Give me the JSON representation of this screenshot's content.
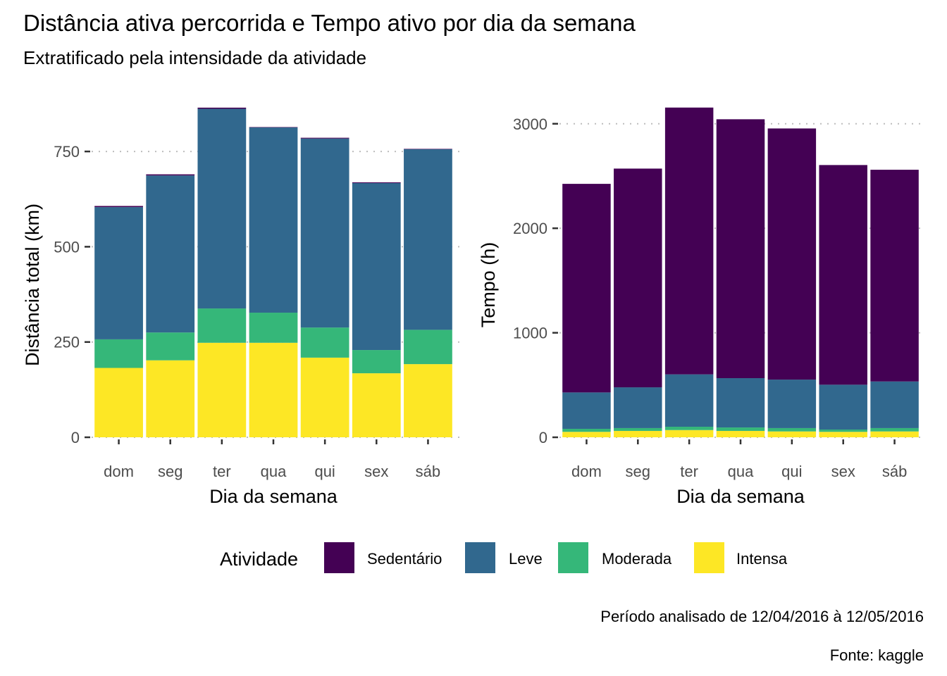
{
  "title": "Distância ativa percorrida e Tempo ativo por dia da semana",
  "subtitle": "Extratificado pela intensidade da atividade",
  "caption_period": "Período analisado de 12/04/2016 à 12/05/2016",
  "caption_source": "Fonte: kaggle",
  "legend": {
    "title": "Atividade",
    "items": [
      {
        "label": "Sedentário",
        "color": "#440154"
      },
      {
        "label": "Leve",
        "color": "#31688E"
      },
      {
        "label": "Moderada",
        "color": "#35B779"
      },
      {
        "label": "Intensa",
        "color": "#FDE725"
      }
    ],
    "position": "bottom"
  },
  "chart_data": [
    {
      "type": "bar",
      "stacked": true,
      "title": "",
      "xlabel": "Dia da semana",
      "ylabel": "Distância total (km)",
      "categories": [
        "dom",
        "seg",
        "ter",
        "qua",
        "qui",
        "sex",
        "sáb"
      ],
      "ylim": [
        0,
        880
      ],
      "yticks": [
        0,
        250,
        500,
        750
      ],
      "ytick_labels": [
        "0",
        "250",
        "500",
        "750"
      ],
      "grid": "horizontal dotted",
      "series": [
        {
          "name": "Intensa",
          "values": [
            182,
            202,
            248,
            248,
            209,
            168,
            192
          ]
        },
        {
          "name": "Moderada",
          "values": [
            75,
            73,
            90,
            79,
            79,
            61,
            90
          ]
        },
        {
          "name": "Leve",
          "values": [
            347,
            412,
            524,
            486,
            496,
            438,
            474
          ]
        },
        {
          "name": "Sedentário",
          "values": [
            3,
            3,
            3,
            1,
            2,
            2,
            1
          ]
        }
      ]
    },
    {
      "type": "bar",
      "stacked": true,
      "title": "",
      "xlabel": "Dia da semana",
      "ylabel": "Tempo (h)",
      "categories": [
        "dom",
        "seg",
        "ter",
        "qua",
        "qui",
        "sex",
        "sáb"
      ],
      "ylim": [
        0,
        3200
      ],
      "yticks": [
        0,
        1000,
        2000,
        3000
      ],
      "ytick_labels": [
        "0",
        "1000",
        "2000",
        "3000"
      ],
      "grid": "horizontal dotted",
      "series": [
        {
          "name": "Intensa",
          "values": [
            52,
            61,
            69,
            61,
            56,
            52,
            56
          ]
        },
        {
          "name": "Moderada",
          "values": [
            29,
            27,
            32,
            33,
            32,
            22,
            32
          ]
        },
        {
          "name": "Leve",
          "values": [
            348,
            390,
            501,
            472,
            464,
            429,
            446
          ]
        },
        {
          "name": "Sedentário",
          "values": [
            1996,
            2093,
            2553,
            2477,
            2403,
            2102,
            2026
          ]
        }
      ]
    }
  ]
}
